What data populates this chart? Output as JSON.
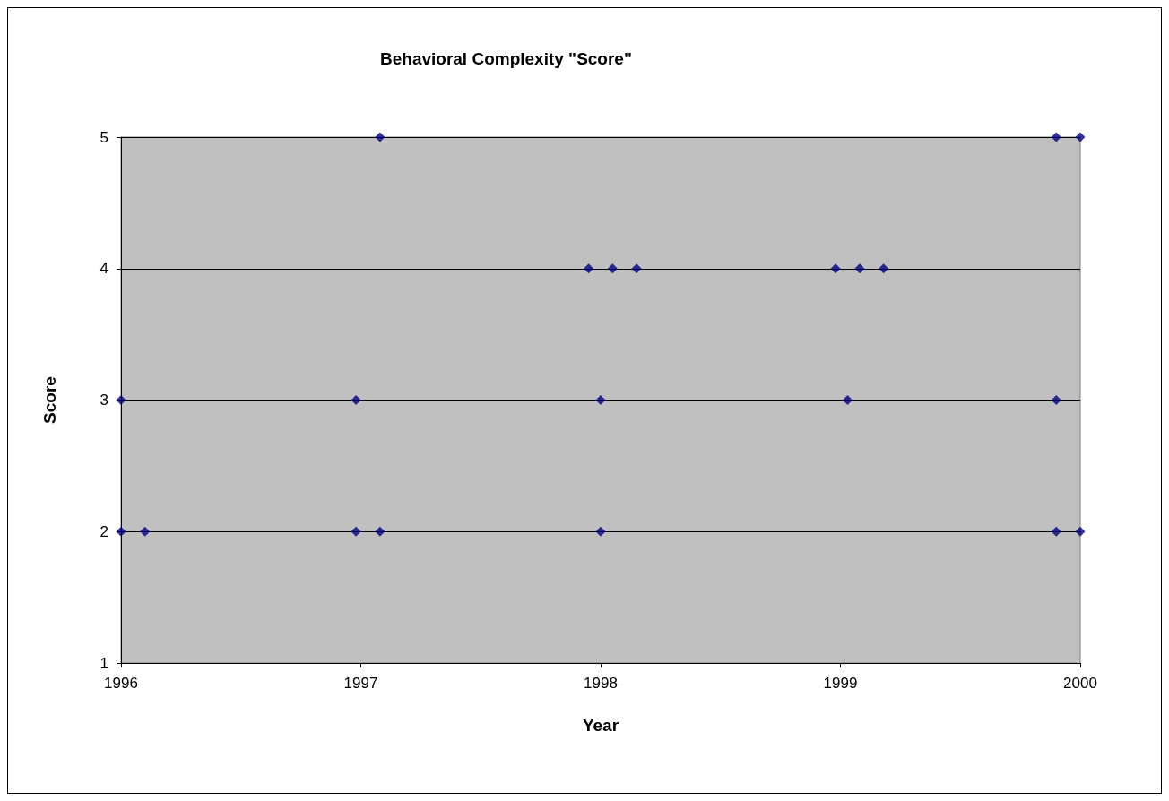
{
  "chart_data": {
    "type": "scatter",
    "title": "Behavioral Complexity \"Score\"",
    "xlabel": "Year",
    "ylabel": "Score",
    "x": [
      1996,
      1996,
      1996.1,
      1996.98,
      1996.98,
      1997.08,
      1997.08,
      1997.95,
      1998.05,
      1998.15,
      1998,
      1998,
      1998.98,
      1999.08,
      1999.18,
      1999.03,
      1999.9,
      2000,
      1999.9,
      1999.9,
      2000
    ],
    "values": [
      3,
      2,
      2,
      3,
      2,
      2,
      5,
      4,
      4,
      4,
      3,
      2,
      4,
      4,
      4,
      3,
      5,
      5,
      3,
      2,
      2
    ],
    "color": "#000080",
    "marker": "diamond",
    "xlim": [
      1996,
      2000
    ],
    "xticks": [
      1996,
      1997,
      1998,
      1999,
      2000
    ],
    "ylim": [
      1,
      5
    ],
    "yticks": [
      1,
      2,
      3,
      4,
      5
    ],
    "grid": "y"
  }
}
